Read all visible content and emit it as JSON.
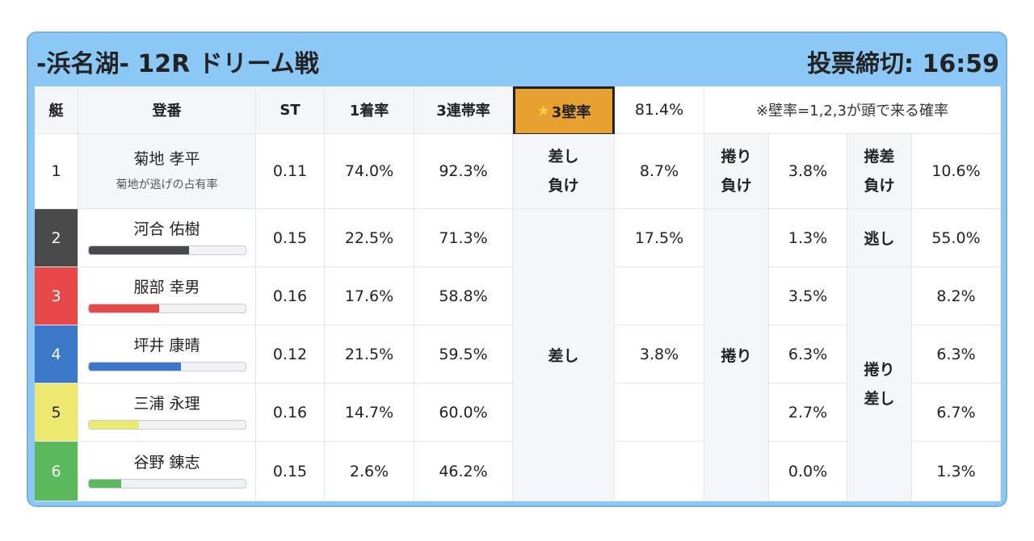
{
  "header": {
    "title": "-浜名湖- 12R ドリーム戦",
    "deadline": "投票締切: 16:59"
  },
  "columns": {
    "boat": "艇",
    "name": "登番",
    "st": "ST",
    "win": "1着率",
    "top3": "3連帯率",
    "kabe_star": "★",
    "kabe_label": "3壁率",
    "kabe_value": "81.4%",
    "kabe_note": "※壁率=1,2,3が頭で来る確率"
  },
  "racers": [
    {
      "boat": "1",
      "name": "菊地 孝平",
      "sub": "菊地が逃げの占有率",
      "st": "0.11",
      "win": "74.0%",
      "top3": "92.3%",
      "color": "#ffffff",
      "bar": null
    },
    {
      "boat": "2",
      "name": "河合 佑樹",
      "st": "0.15",
      "win": "22.5%",
      "top3": "71.3%",
      "color": "#4a4a4a",
      "bar": 0.64
    },
    {
      "boat": "3",
      "name": "服部 幸男",
      "st": "0.16",
      "win": "17.6%",
      "top3": "58.8%",
      "color": "#e84848",
      "bar": 0.45
    },
    {
      "boat": "4",
      "name": "坪井 康晴",
      "st": "0.12",
      "win": "21.5%",
      "top3": "59.5%",
      "color": "#3d78c8",
      "bar": 0.59
    },
    {
      "boat": "5",
      "name": "三浦 永理",
      "st": "0.16",
      "win": "14.7%",
      "top3": "60.0%",
      "color": "#ece870",
      "bar": 0.32
    },
    {
      "boat": "6",
      "name": "谷野 錬志",
      "st": "0.15",
      "win": "2.6%",
      "top3": "46.2%",
      "color": "#5cb85c",
      "bar": 0.21
    }
  ],
  "patterns": {
    "sashi_make": {
      "line1": "差し",
      "line2": "負け",
      "value": "8.7%"
    },
    "makuri_make": {
      "line1": "捲り",
      "line2": "負け",
      "value": "3.8%"
    },
    "makurizashi_make": {
      "line1": "捲差",
      "line2": "負け",
      "value": "10.6%"
    },
    "sashi": {
      "label": "差し",
      "values": [
        "17.5%",
        "",
        "3.8%",
        "",
        ""
      ]
    },
    "makuri": {
      "label": "捲り",
      "values": [
        "1.3%",
        "3.5%",
        "6.3%",
        "2.7%",
        "0.0%"
      ]
    },
    "nige": {
      "label": "逃し",
      "value": "55.0%"
    },
    "makurizashi": {
      "line1": "捲り",
      "line2": "差し",
      "values": [
        "8.2%",
        "6.3%",
        "6.7%",
        "1.3%"
      ]
    }
  }
}
